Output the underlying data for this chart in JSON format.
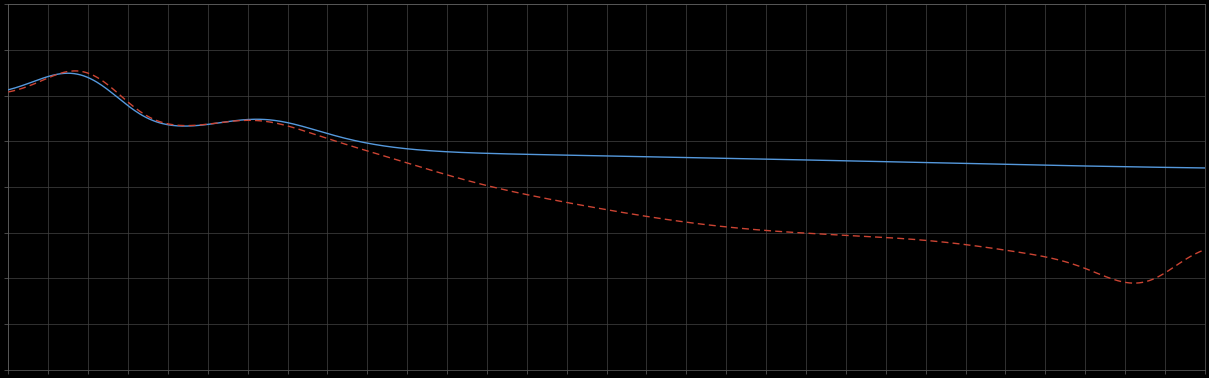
{
  "background_color": "#000000",
  "axes_bg_color": "#000000",
  "grid_color": "#444444",
  "line1_color": "#5599dd",
  "line2_color": "#cc4433",
  "line_width": 1.0,
  "xlim": [
    0,
    365
  ],
  "ylim": [
    0,
    8
  ],
  "n_x_gridlines": 30,
  "n_y_gridlines": 8,
  "figsize": [
    12.09,
    3.78
  ],
  "dpi": 100
}
